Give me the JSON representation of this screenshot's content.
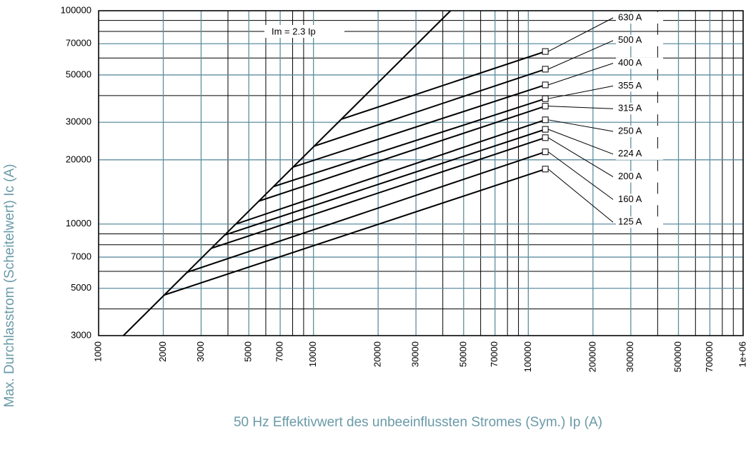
{
  "chart_data": {
    "type": "line",
    "xlabel": "50 Hz Effektivwert des unbeeinflussten Stromes (Sym.) Ip (A)",
    "ylabel": "Max. Durchlasstrom (Scheitelwert) Ic (A)",
    "log_x": true,
    "log_y": true,
    "grid": true,
    "xlim": [
      1000,
      1000000
    ],
    "ylim": [
      3000,
      100000
    ],
    "xticks": [
      1000,
      2000,
      3000,
      5000,
      7000,
      10000,
      20000,
      30000,
      50000,
      70000,
      100000,
      200000,
      300000,
      500000,
      700000,
      {
        "value": 1000000,
        "label": "1e+06"
      }
    ],
    "yticks": [
      3000,
      5000,
      7000,
      10000,
      20000,
      30000,
      50000,
      70000,
      100000
    ],
    "xticks_minor": [
      4000,
      6000,
      8000,
      9000,
      40000,
      60000,
      80000,
      90000,
      400000,
      600000,
      800000,
      900000
    ],
    "yticks_minor": [
      4000,
      6000,
      8000,
      9000,
      40000,
      60000,
      80000,
      90000
    ],
    "reference": {
      "name": "Im = 2.3 Ip",
      "x": [
        1304,
        43478
      ],
      "values": [
        3000,
        100000
      ],
      "color": "#000000"
    },
    "series": [
      {
        "name": "630 A",
        "color": "#000000",
        "x": [
          13500,
          120000
        ],
        "values": [
          31000,
          64400
        ]
      },
      {
        "name": "500 A",
        "color": "#000000",
        "x": [
          10100,
          120000
        ],
        "values": [
          23200,
          53200
        ]
      },
      {
        "name": "400 A",
        "color": "#000000",
        "x": [
          8040,
          120000
        ],
        "values": [
          18500,
          44900
        ]
      },
      {
        "name": "355 A",
        "color": "#000000",
        "x": [
          6530,
          120000
        ],
        "values": [
          15000,
          38700
        ]
      },
      {
        "name": "315 A",
        "color": "#000000",
        "x": [
          5560,
          120000
        ],
        "values": [
          12800,
          35700
        ]
      },
      {
        "name": "250 A",
        "color": "#000000",
        "x": [
          4350,
          120000
        ],
        "values": [
          10000,
          30800
        ]
      },
      {
        "name": "224 A",
        "color": "#000000",
        "x": [
          3880,
          120000
        ],
        "values": [
          8900,
          27800
        ]
      },
      {
        "name": "200 A",
        "color": "#000000",
        "x": [
          3350,
          120000
        ],
        "values": [
          7700,
          25400
        ]
      },
      {
        "name": "160 A",
        "color": "#000000",
        "x": [
          2580,
          120000
        ],
        "values": [
          5940,
          21800
        ]
      },
      {
        "name": "125 A",
        "color": "#000000",
        "x": [
          2020,
          120000
        ],
        "values": [
          4650,
          18100
        ]
      }
    ]
  }
}
